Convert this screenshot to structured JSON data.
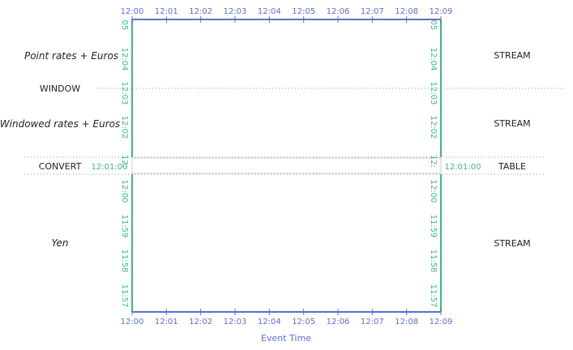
{
  "colors": {
    "time_axis": "#5b6fcf",
    "value_axis": "#3cba7d",
    "divider": "#999999"
  },
  "time_ticks": [
    "12:00",
    "12:01",
    "12:02",
    "12:03",
    "12:04",
    "12:05",
    "12:06",
    "12:07",
    "12:08",
    "12:09"
  ],
  "axis_title": "Event Time",
  "top_section": {
    "rows": [
      {
        "left": "Point rates + Euros",
        "right": "STREAM",
        "italic": true
      },
      {
        "left": "WINDOW",
        "right": "",
        "italic": false
      },
      {
        "left": "Windowed rates + Euros",
        "right": "STREAM",
        "italic": true
      }
    ],
    "y_ticks": [
      "05",
      "12:04",
      "12:03",
      "12:02",
      "12:"
    ]
  },
  "convert_row": {
    "left": "CONVERT",
    "right": "TABLE",
    "time_left": "12:01:00",
    "time_right": "12:01:00"
  },
  "bottom_section": {
    "rows": [
      {
        "left": "Yen",
        "right": "STREAM",
        "italic": true
      }
    ],
    "y_ticks": [
      "12:00",
      "11:59",
      "11:58",
      "11:57"
    ]
  }
}
